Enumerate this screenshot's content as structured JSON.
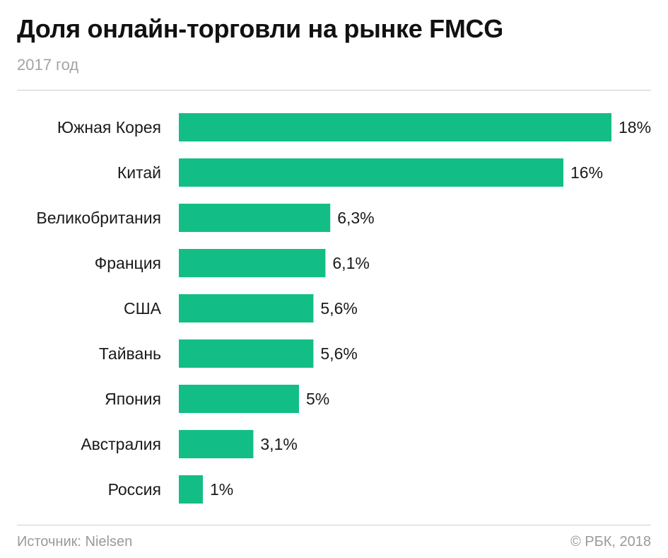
{
  "header": {
    "title": "Доля онлайн-торговли на рынке FMCG",
    "subtitle": "2017 год"
  },
  "footer": {
    "source": "Источник: Nielsen",
    "copyright": "© РБК, 2018"
  },
  "colors": {
    "bar": "#13be86",
    "text": "#1a1a1a",
    "muted": "#a3a3a3",
    "rule": "#cfcfcf"
  },
  "chart_data": {
    "type": "bar",
    "orientation": "horizontal",
    "title": "Доля онлайн-торговли на рынке FMCG",
    "subtitle": "2017 год",
    "xlabel": "",
    "ylabel": "",
    "categories": [
      "Южная Корея",
      "Китай",
      "Великобритания",
      "Франция",
      "США",
      "Тайвань",
      "Япония",
      "Австралия",
      "Россия"
    ],
    "values": [
      18,
      16,
      6.3,
      6.1,
      5.6,
      5.6,
      5,
      3.1,
      1
    ],
    "value_labels": [
      "18%",
      "16%",
      "6,3%",
      "6,1%",
      "5,6%",
      "5,6%",
      "5%",
      "3,1%",
      "1%"
    ],
    "unit": "%",
    "xlim": [
      0,
      18
    ],
    "grid": false,
    "legend": "none"
  }
}
